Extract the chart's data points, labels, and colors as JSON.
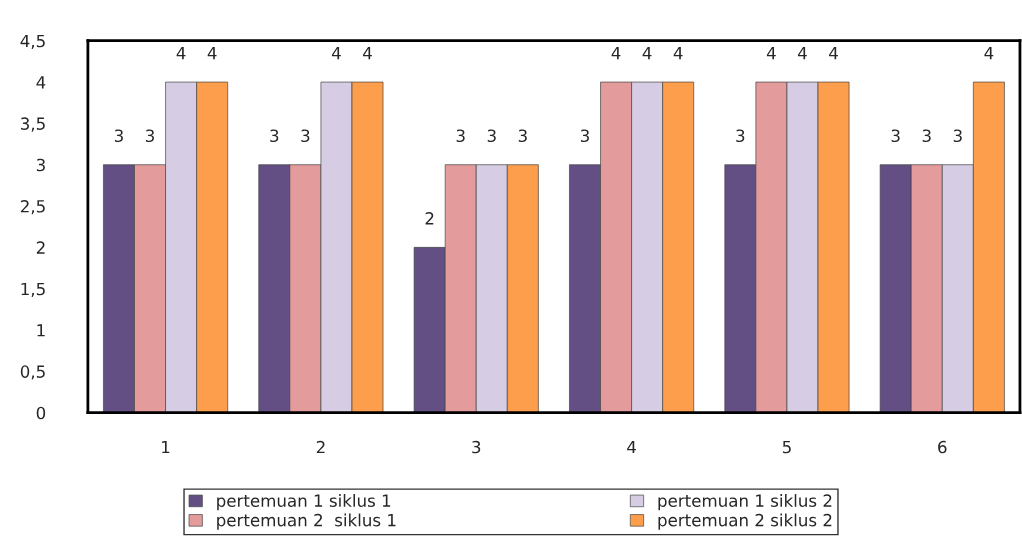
{
  "chart_data": {
    "type": "bar",
    "categories": [
      "1",
      "2",
      "3",
      "4",
      "5",
      "6"
    ],
    "series": [
      {
        "name": "pertemuan 1 siklus 1",
        "color": "#644f84",
        "values": [
          3,
          3,
          2,
          3,
          3,
          3
        ]
      },
      {
        "name": "pertemuan 2  siklus 1",
        "color": "#e39b9b",
        "values": [
          3,
          3,
          3,
          4,
          4,
          3
        ]
      },
      {
        "name": "pertemuan 1 siklus 2",
        "color": "#d6cce3",
        "values": [
          4,
          4,
          3,
          4,
          4,
          3
        ]
      },
      {
        "name": "pertemuan 2 siklus 2",
        "color": "#fd9e4c",
        "values": [
          4,
          4,
          3,
          4,
          4,
          4
        ]
      }
    ],
    "ylim": [
      0,
      4.5
    ],
    "yticks": [
      0,
      {
        "value": 0.5,
        "label": "0,5"
      },
      1,
      {
        "value": 1.5,
        "label": "1,5"
      },
      2,
      {
        "value": 2.5,
        "label": "2,5"
      },
      3,
      {
        "value": 3.5,
        "label": "3,5"
      },
      4,
      {
        "value": 4.5,
        "label": "4,5"
      }
    ],
    "data_labels": true,
    "grid": false,
    "legend": "bottom"
  }
}
